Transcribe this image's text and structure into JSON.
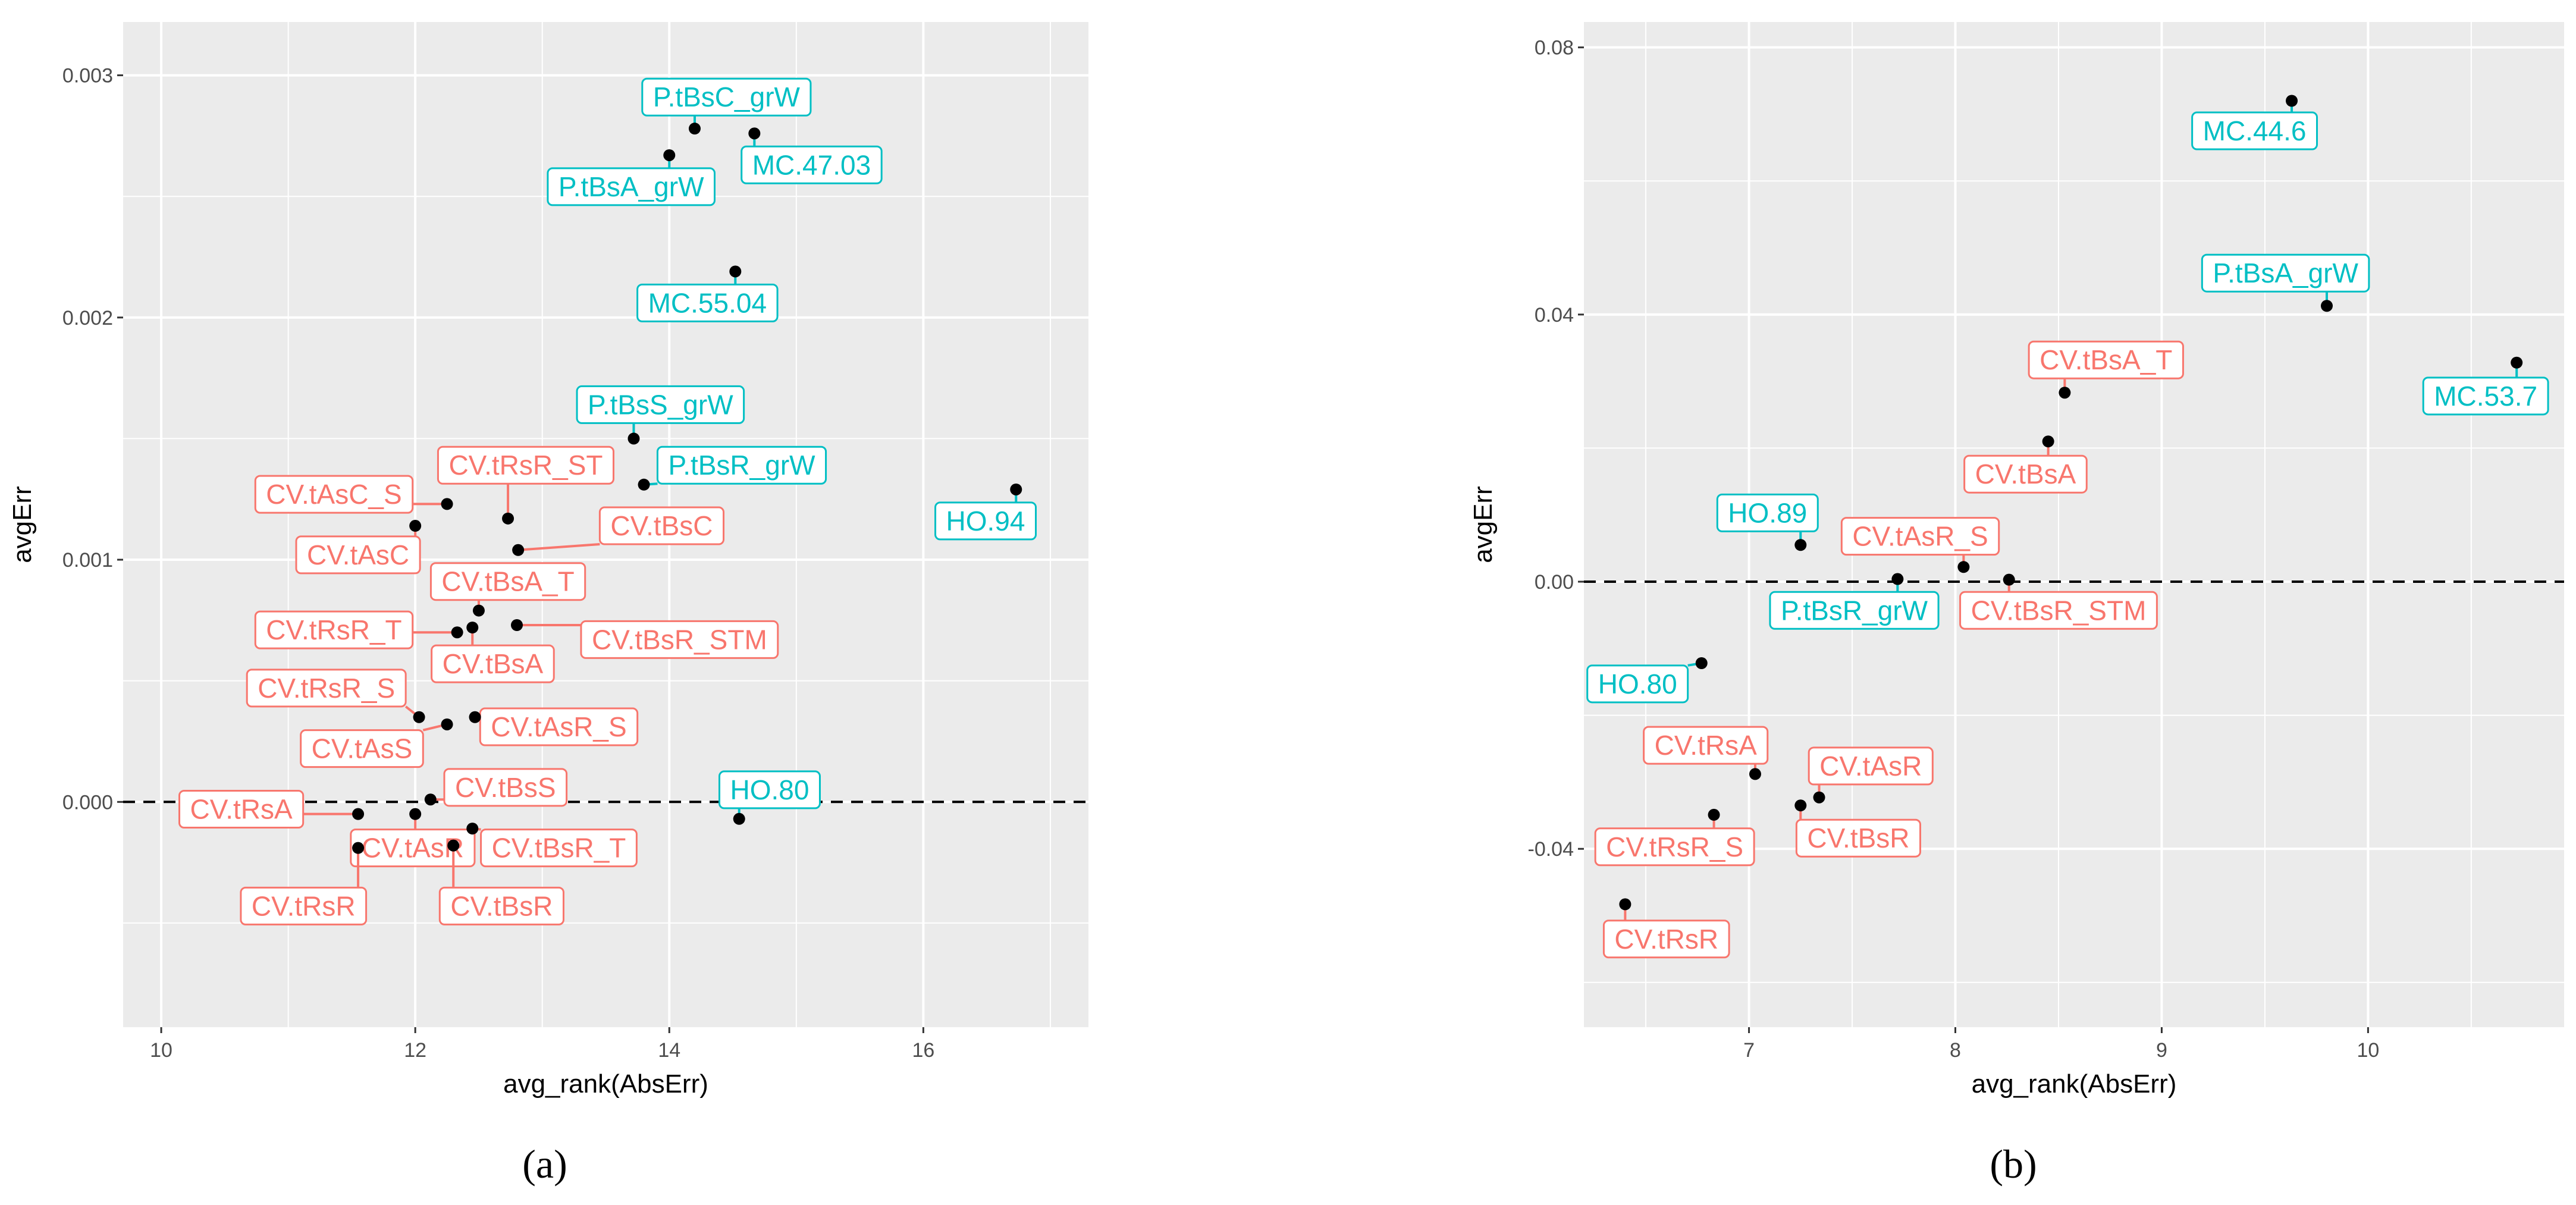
{
  "colors": {
    "panel_bg": "#EBEBEB",
    "grid": "#FFFFFF",
    "cv": "#F8766D",
    "other": "#00BFC4",
    "point": "#000000"
  },
  "chart_data": [
    {
      "type": "scatter",
      "panel": "a",
      "caption": "(a)",
      "xlabel": "avg_rank(AbsErr)",
      "ylabel": "avgErr",
      "xlim": [
        9.7,
        17.3
      ],
      "ylim": [
        -0.00093,
        0.00322
      ],
      "xticks": [
        10,
        12,
        14,
        16
      ],
      "xtick_labels": [
        "10",
        "12",
        "14",
        "16"
      ],
      "yticks": [
        0.0,
        0.001,
        0.002,
        0.003
      ],
      "ytick_labels": [
        "0.000",
        "0.001",
        "0.002",
        "0.003"
      ],
      "hline": 0,
      "grid": true,
      "points": [
        {
          "label": "P.tBsC_grW",
          "x": 14.2,
          "y": 0.00278,
          "group": "other",
          "lx": 14.45,
          "ly": 0.00291
        },
        {
          "label": "P.tBsA_grW",
          "x": 14.0,
          "y": 0.00267,
          "group": "other",
          "lx": 13.7,
          "ly": 0.00254
        },
        {
          "label": "MC.47.03",
          "x": 14.67,
          "y": 0.00276,
          "group": "other",
          "lx": 15.12,
          "ly": 0.00263
        },
        {
          "label": "MC.55.04",
          "x": 14.52,
          "y": 0.00219,
          "group": "other",
          "lx": 14.3,
          "ly": 0.00206
        },
        {
          "label": "P.tBsS_grW",
          "x": 13.72,
          "y": 0.0015,
          "group": "other",
          "lx": 13.93,
          "ly": 0.00164
        },
        {
          "label": "P.tBsR_grW",
          "x": 13.8,
          "y": 0.00131,
          "group": "other",
          "lx": 14.57,
          "ly": 0.00139
        },
        {
          "label": "HO.94",
          "x": 16.73,
          "y": 0.00129,
          "group": "other",
          "lx": 16.49,
          "ly": 0.00116
        },
        {
          "label": "CV.tAsC_S",
          "x": 12.25,
          "y": 0.00123,
          "group": "cv",
          "lx": 11.36,
          "ly": 0.00127
        },
        {
          "label": "CV.tRsR_ST",
          "x": 12.73,
          "y": 0.00117,
          "group": "cv",
          "lx": 12.87,
          "ly": 0.00139
        },
        {
          "label": "CV.tAsC",
          "x": 12.0,
          "y": 0.00114,
          "group": "cv",
          "lx": 11.55,
          "ly": 0.00102
        },
        {
          "label": "CV.tBsC",
          "x": 12.81,
          "y": 0.00104,
          "group": "cv",
          "lx": 13.94,
          "ly": 0.00114
        },
        {
          "label": "CV.tBsA_T",
          "x": 12.5,
          "y": 0.00079,
          "group": "cv",
          "lx": 12.73,
          "ly": 0.00091
        },
        {
          "label": "CV.tRsR_T",
          "x": 12.33,
          "y": 0.0007,
          "group": "cv",
          "lx": 11.36,
          "ly": 0.00071
        },
        {
          "label": "CV.tBsA",
          "x": 12.45,
          "y": 0.00072,
          "group": "cv",
          "lx": 12.61,
          "ly": 0.00057
        },
        {
          "label": "CV.tBsR_STM",
          "x": 12.8,
          "y": 0.00073,
          "group": "cv",
          "lx": 14.08,
          "ly": 0.00067
        },
        {
          "label": "CV.tRsR_S",
          "x": 12.03,
          "y": 0.00035,
          "group": "cv",
          "lx": 11.3,
          "ly": 0.00047
        },
        {
          "label": "CV.tAsS",
          "x": 12.25,
          "y": 0.00032,
          "group": "cv",
          "lx": 11.58,
          "ly": 0.00022
        },
        {
          "label": "CV.tAsR_S",
          "x": 12.47,
          "y": 0.00035,
          "group": "cv",
          "lx": 13.13,
          "ly": 0.00031
        },
        {
          "label": "CV.tBsS",
          "x": 12.12,
          "y": 1e-05,
          "group": "cv",
          "lx": 12.71,
          "ly": 6e-05
        },
        {
          "label": "CV.tRsA",
          "x": 11.55,
          "y": -5e-05,
          "group": "cv",
          "lx": 10.63,
          "ly": -3e-05
        },
        {
          "label": "CV.tAsR",
          "x": 12.0,
          "y": -5e-05,
          "group": "cv",
          "lx": 11.98,
          "ly": -0.00019
        },
        {
          "label": "CV.tBsR_T",
          "x": 12.45,
          "y": -0.00011,
          "group": "cv",
          "lx": 13.13,
          "ly": -0.00019
        },
        {
          "label": "CV.tBsR",
          "x": 12.3,
          "y": -0.00018,
          "group": "cv",
          "lx": 12.68,
          "ly": -0.00043
        },
        {
          "label": "CV.tRsR",
          "x": 11.55,
          "y": -0.00019,
          "group": "cv",
          "lx": 11.12,
          "ly": -0.00043
        },
        {
          "label": "HO.80",
          "x": 14.55,
          "y": -7e-05,
          "group": "other",
          "lx": 14.79,
          "ly": 5e-05
        }
      ]
    },
    {
      "type": "scatter",
      "panel": "b",
      "caption": "(b)",
      "xlabel": "avg_rank(AbsErr)",
      "ylabel": "avgErr",
      "xlim": [
        6.2,
        10.95
      ],
      "ylim": [
        -0.0667,
        0.0838
      ],
      "xticks": [
        7,
        8,
        9,
        10
      ],
      "xtick_labels": [
        "7",
        "8",
        "9",
        "10"
      ],
      "yticks": [
        -0.04,
        0.0,
        0.04,
        0.08
      ],
      "ytick_labels": [
        "-0.04",
        "0.00",
        "0.04",
        "0.08"
      ],
      "hline": 0,
      "grid": true,
      "points": [
        {
          "label": "MC.44.6",
          "x": 9.63,
          "y": 0.072,
          "group": "other",
          "lx": 9.45,
          "ly": 0.0675
        },
        {
          "label": "P.tBsA_grW",
          "x": 9.8,
          "y": 0.0413,
          "group": "other",
          "lx": 9.6,
          "ly": 0.0462
        },
        {
          "label": "MC.53.7",
          "x": 10.72,
          "y": 0.0328,
          "group": "other",
          "lx": 10.57,
          "ly": 0.0278
        },
        {
          "label": "CV.tBsA_T",
          "x": 8.53,
          "y": 0.0283,
          "group": "cv",
          "lx": 8.73,
          "ly": 0.0332
        },
        {
          "label": "CV.tBsA",
          "x": 8.45,
          "y": 0.021,
          "group": "cv",
          "lx": 8.34,
          "ly": 0.0161
        },
        {
          "label": "HO.89",
          "x": 7.25,
          "y": 0.0055,
          "group": "other",
          "lx": 7.09,
          "ly": 0.0103
        },
        {
          "label": "CV.tAsR_S",
          "x": 8.04,
          "y": 0.0022,
          "group": "cv",
          "lx": 7.83,
          "ly": 0.0068
        },
        {
          "label": "P.tBsR_grW",
          "x": 7.72,
          "y": 0.0004,
          "group": "other",
          "lx": 7.51,
          "ly": -0.0043
        },
        {
          "label": "CV.tBsR_STM",
          "x": 8.26,
          "y": 0.0003,
          "group": "cv",
          "lx": 8.5,
          "ly": -0.0043
        },
        {
          "label": "HO.80",
          "x": 6.77,
          "y": -0.0122,
          "group": "other",
          "lx": 6.46,
          "ly": -0.0153
        },
        {
          "label": "CV.tRsA",
          "x": 7.03,
          "y": -0.0288,
          "group": "cv",
          "lx": 6.79,
          "ly": -0.0245
        },
        {
          "label": "CV.tAsR",
          "x": 7.34,
          "y": -0.0323,
          "group": "cv",
          "lx": 7.59,
          "ly": -0.0276
        },
        {
          "label": "CV.tRsR_S",
          "x": 6.83,
          "y": -0.0349,
          "group": "cv",
          "lx": 6.64,
          "ly": -0.0397
        },
        {
          "label": "CV.tBsR",
          "x": 7.25,
          "y": -0.0335,
          "group": "cv",
          "lx": 7.53,
          "ly": -0.0384
        },
        {
          "label": "CV.tRsR",
          "x": 6.4,
          "y": -0.0483,
          "group": "cv",
          "lx": 6.6,
          "ly": -0.0535
        }
      ]
    }
  ]
}
